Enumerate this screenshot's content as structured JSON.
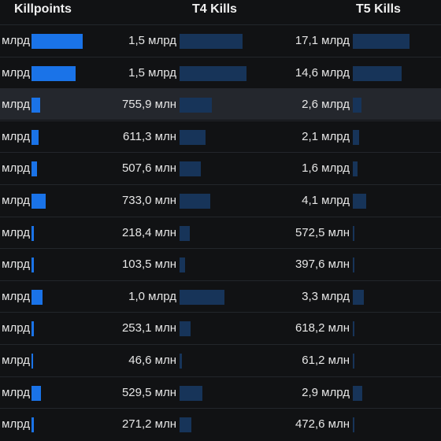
{
  "headers": {
    "killpoints": "Killpoints",
    "t4": "T4 Kills",
    "t5": "T5 Kills"
  },
  "colors": {
    "background": "#111214",
    "row_highlight": "#24272d",
    "killpoints_bar": "#1a73e8",
    "kills_bar": "#173459"
  },
  "rows": [
    {
      "kp": "млрд",
      "kp_level": 1.0,
      "t4": "1,5 млрд",
      "t4_level": 0.94,
      "t5": "17,1 млрд",
      "t5_level": 1.0,
      "highlight": false
    },
    {
      "kp": "млрд",
      "kp_level": 0.86,
      "t4": "1,5 млрд",
      "t4_level": 1.0,
      "t5": "14,6 млрд",
      "t5_level": 0.86,
      "highlight": false
    },
    {
      "kp": "млрд",
      "kp_level": 0.17,
      "t4": "755,9 млн",
      "t4_level": 0.48,
      "t5": "2,6 млрд",
      "t5_level": 0.15,
      "highlight": true
    },
    {
      "kp": "млрд",
      "kp_level": 0.14,
      "t4": "611,3 млн",
      "t4_level": 0.39,
      "t5": "2,1 млрд",
      "t5_level": 0.11,
      "highlight": false
    },
    {
      "kp": "млрд",
      "kp_level": 0.11,
      "t4": "507,6 млн",
      "t4_level": 0.32,
      "t5": "1,6 млрд",
      "t5_level": 0.08,
      "highlight": false
    },
    {
      "kp": "млрд",
      "kp_level": 0.27,
      "t4": "733,0 млн",
      "t4_level": 0.46,
      "t5": "4,1 млрд",
      "t5_level": 0.24,
      "highlight": false
    },
    {
      "kp": "млрд",
      "kp_level": 0.05,
      "t4": "218,4 млн",
      "t4_level": 0.15,
      "t5": "572,5 млн",
      "t5_level": 0.03,
      "highlight": false
    },
    {
      "kp": "млрд",
      "kp_level": 0.04,
      "t4": "103,5 млн",
      "t4_level": 0.08,
      "t5": "397,6 млн",
      "t5_level": 0.02,
      "highlight": false
    },
    {
      "kp": "млрд",
      "kp_level": 0.22,
      "t4": "1,0 млрд",
      "t4_level": 0.67,
      "t5": "3,3 млрд",
      "t5_level": 0.19,
      "highlight": false
    },
    {
      "kp": "млрд",
      "kp_level": 0.04,
      "t4": "253,1 млн",
      "t4_level": 0.17,
      "t5": "618,2 млн",
      "t5_level": 0.03,
      "highlight": false
    },
    {
      "kp": "млрд",
      "kp_level": 0.03,
      "t4": "46,6 млн",
      "t4_level": 0.03,
      "t5": "61,2 млн",
      "t5_level": 0.01,
      "highlight": false
    },
    {
      "kp": "млрд",
      "kp_level": 0.18,
      "t4": "529,5 млн",
      "t4_level": 0.34,
      "t5": "2,9 млрд",
      "t5_level": 0.17,
      "highlight": false
    },
    {
      "kp": "млрд",
      "kp_level": 0.04,
      "t4": "271,2 млн",
      "t4_level": 0.18,
      "t5": "472,6 млн",
      "t5_level": 0.02,
      "highlight": false
    }
  ]
}
